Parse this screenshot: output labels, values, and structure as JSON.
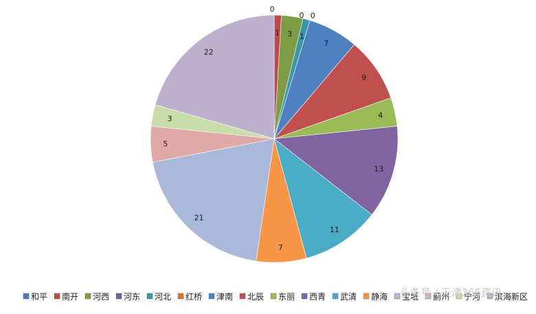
{
  "chart_data": {
    "type": "pie",
    "categories": [
      "和平",
      "南开",
      "河西",
      "河东",
      "河北",
      "红桥",
      "津南",
      "北辰",
      "东丽",
      "西青",
      "武清",
      "静海",
      "宝坻",
      "蓟州",
      "宁河",
      "滨海新区"
    ],
    "values": [
      0,
      1,
      3,
      0,
      1,
      0,
      7,
      9,
      4,
      13,
      11,
      7,
      21,
      5,
      3,
      22
    ],
    "colors": [
      "#4a7ab9",
      "#be4b48",
      "#7e9b45",
      "#7a5c9c",
      "#3c98a8",
      "#d8782f",
      "#4f80c0",
      "#c0504d",
      "#9bbb59",
      "#8064a2",
      "#4bacc6",
      "#f79646",
      "#aab9d9",
      "#dfa9a8",
      "#c9dcaa",
      "#bcb0cc"
    ],
    "legend_position": "bottom"
  },
  "watermark": "头条号 / 天津365资讯"
}
